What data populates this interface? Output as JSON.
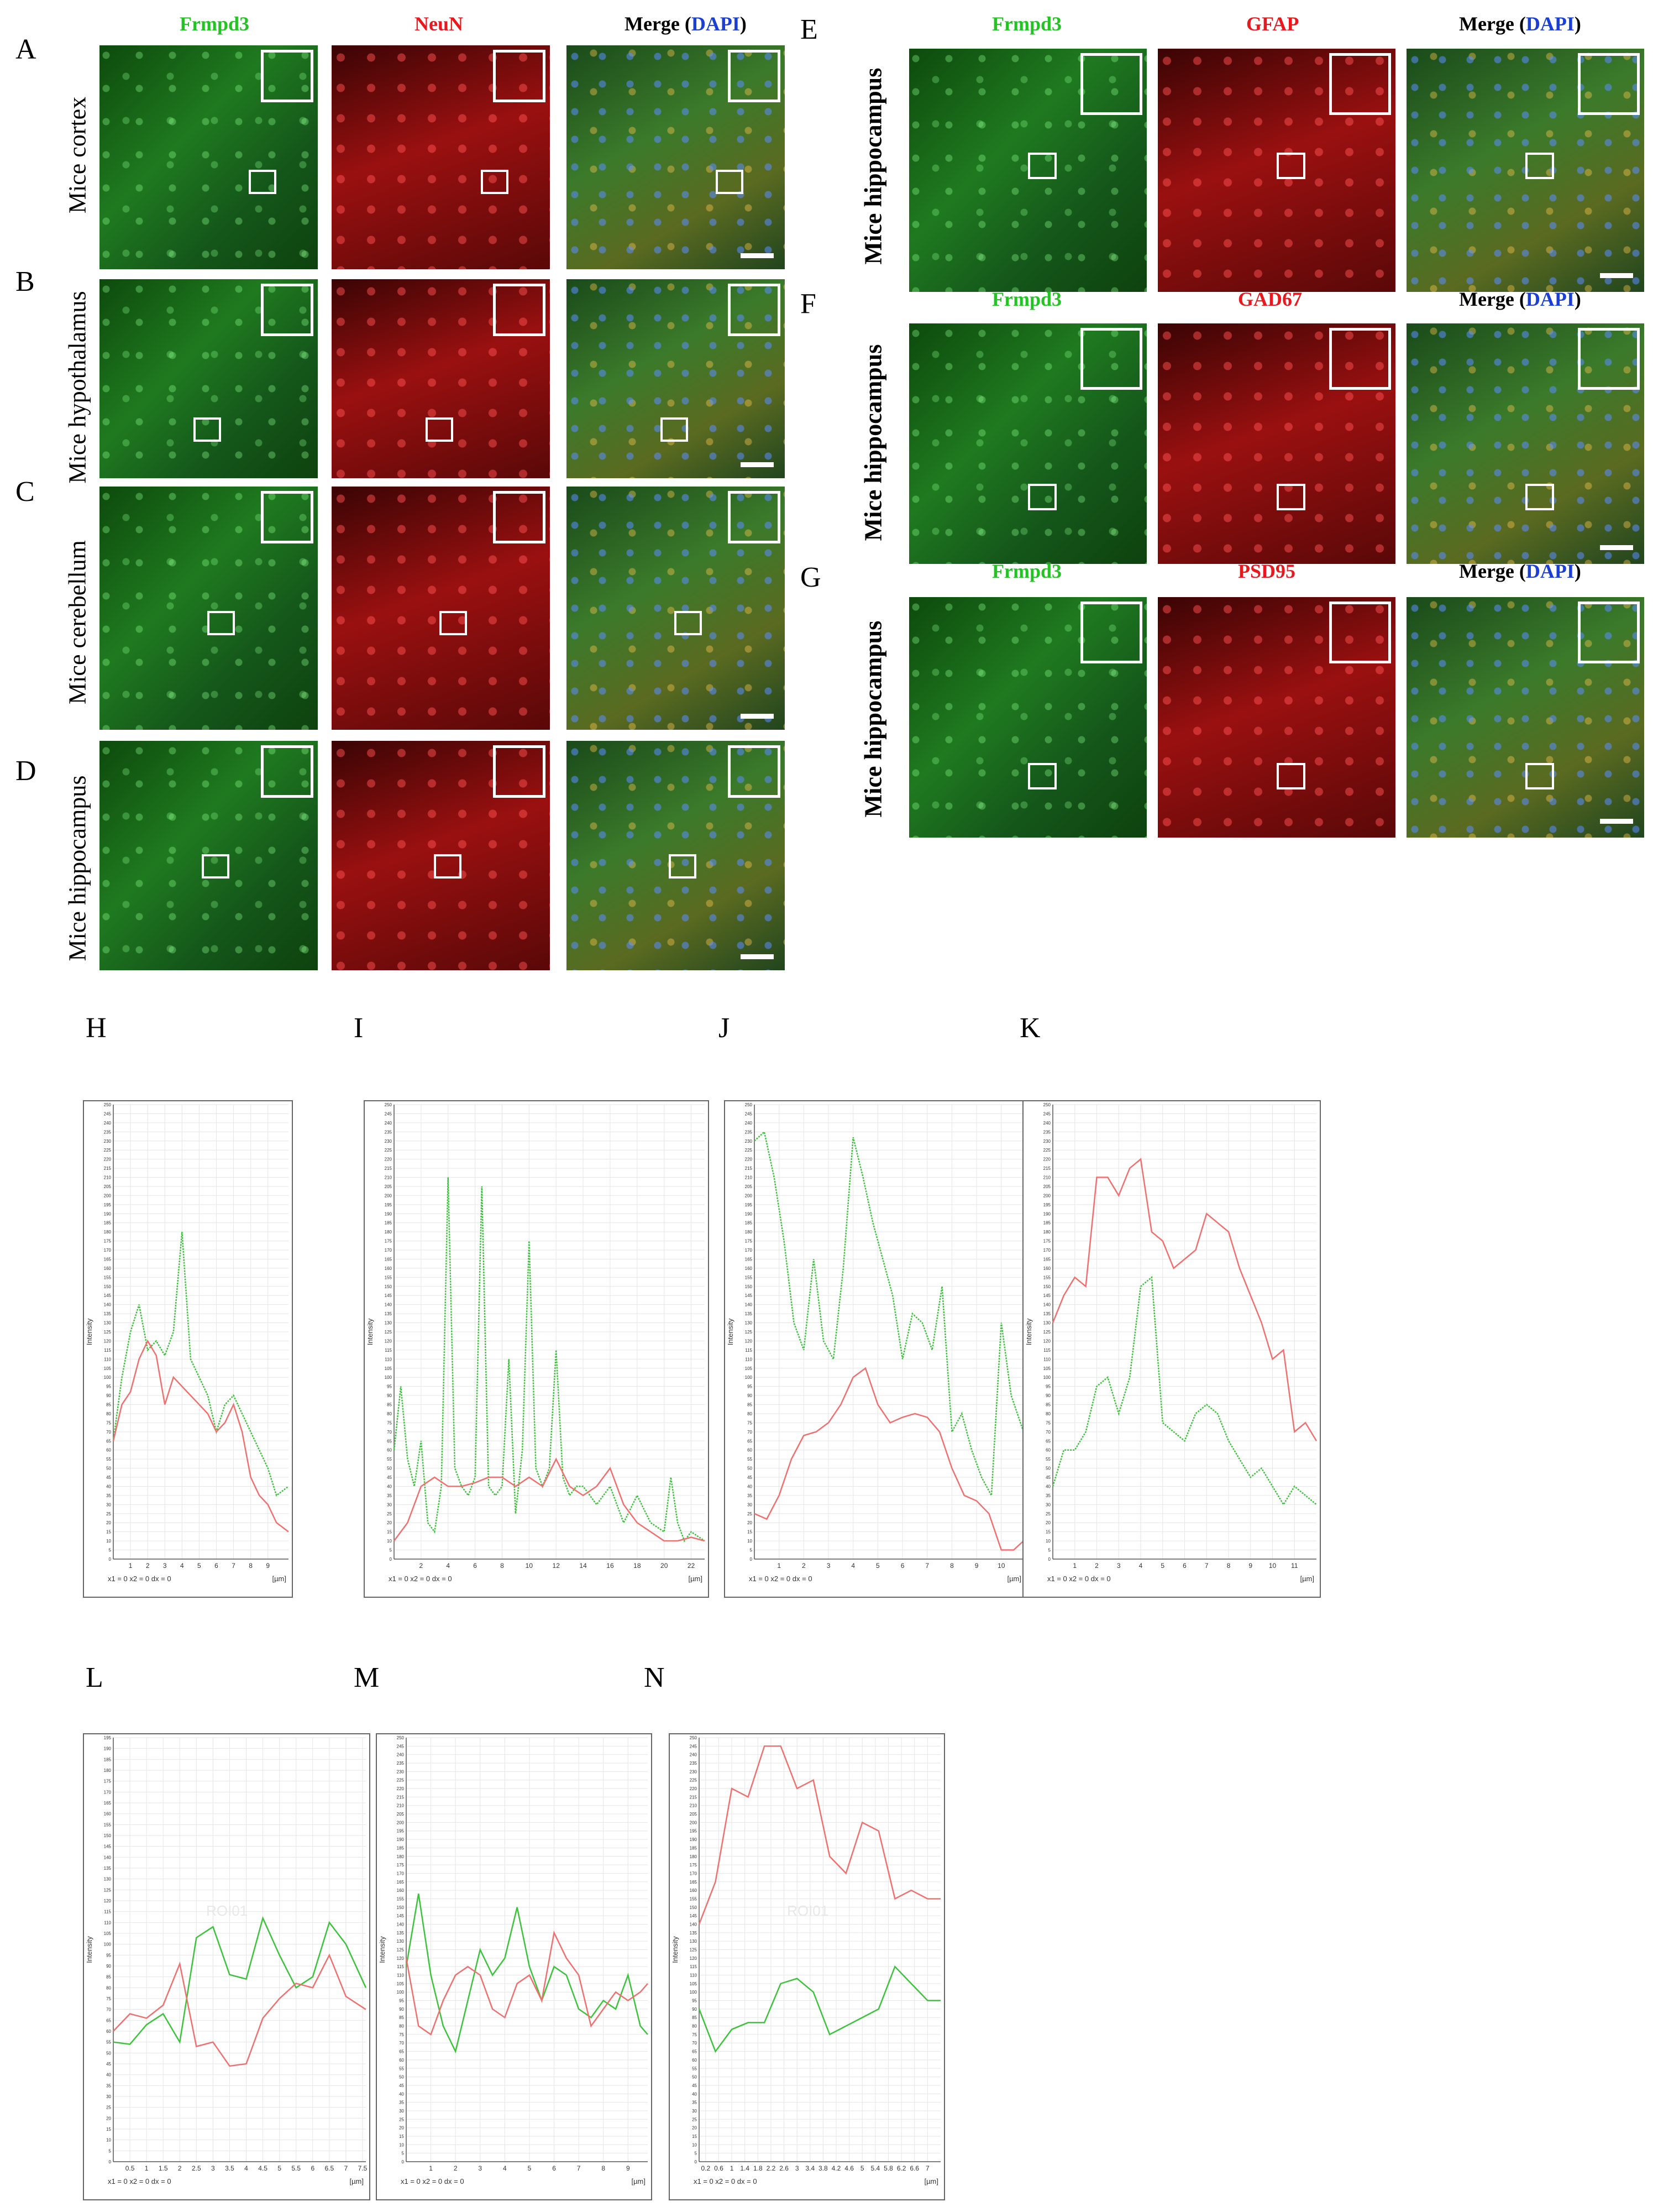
{
  "figure": {
    "panel_letters": [
      "A",
      "B",
      "C",
      "D",
      "E",
      "F",
      "G",
      "H",
      "I",
      "J",
      "K",
      "L",
      "M",
      "N"
    ],
    "row_labels_left": [
      "Mice cortex",
      "Mice hypothalamus",
      "Mice cerebellum",
      "Mice hippocampus"
    ],
    "row_labels_right": [
      "Mice hippocampus",
      "Mice hippocampus",
      "Mice hippocampus"
    ],
    "left_columns": {
      "c1": "Frmpd3",
      "c2": "NeuN",
      "c3_prefix": "Merge (",
      "c3_dapi": "DAPI",
      "c3_suffix": ")"
    },
    "E_columns": {
      "c1": "Frmpd3",
      "c2": "GFAP",
      "c3_prefix": "Merge (",
      "c3_dapi": "DAPI",
      "c3_suffix": ")"
    },
    "F_columns": {
      "c1": "Frmpd3",
      "c2": "GAD67",
      "c3_prefix": "Merge (",
      "c3_dapi": "DAPI",
      "c3_suffix": ")"
    },
    "G_columns": {
      "c1": "Frmpd3",
      "c2": "PSD95",
      "c3_prefix": "Merge (",
      "c3_dapi": "DAPI",
      "c3_suffix": ")"
    },
    "colors": {
      "green": "#22c322",
      "red": "#e8191e",
      "blue": "#1a3fd6",
      "green_line": "#3cc33c",
      "red_line": "#f07070"
    }
  },
  "chart_data": [
    {
      "id": "H",
      "type": "line",
      "ylabel": "Intensity",
      "xlabel": "[µm]",
      "footer": "x1 = 0   x2 = 0   dx = 0",
      "ylim": [
        0,
        250
      ],
      "xlim": [
        0,
        10.2
      ],
      "ytick_step": 5,
      "xticks": [
        1,
        2,
        3,
        4,
        5,
        6,
        7,
        8,
        9
      ],
      "watermark": "",
      "series": [
        {
          "name": "green",
          "color": "#3cc33c",
          "dashed": true,
          "x": [
            0,
            0.5,
            1,
            1.5,
            2,
            2.5,
            3,
            3.5,
            4,
            4.5,
            5,
            5.5,
            6,
            6.5,
            7,
            7.5,
            8,
            8.5,
            9,
            9.5,
            10.2
          ],
          "y": [
            65,
            100,
            125,
            140,
            115,
            120,
            112,
            125,
            180,
            110,
            100,
            90,
            70,
            85,
            90,
            80,
            70,
            60,
            50,
            35,
            40
          ]
        },
        {
          "name": "red",
          "color": "#f07070",
          "dashed": false,
          "x": [
            0,
            0.5,
            1,
            1.5,
            2,
            2.5,
            3,
            3.5,
            4,
            4.5,
            5,
            5.5,
            6,
            6.5,
            7,
            7.5,
            8,
            8.5,
            9,
            9.5,
            10.2
          ],
          "y": [
            65,
            85,
            92,
            110,
            120,
            112,
            85,
            100,
            95,
            90,
            85,
            80,
            70,
            75,
            85,
            70,
            45,
            35,
            30,
            20,
            15
          ]
        }
      ]
    },
    {
      "id": "I",
      "type": "line",
      "ylabel": "Intensity",
      "xlabel": "[µm]",
      "footer": "x1 = 0   x2 = 0   dx = 0",
      "ylim": [
        0,
        250
      ],
      "xlim": [
        0,
        23
      ],
      "ytick_step": 5,
      "xticks": [
        2,
        4,
        6,
        8,
        10,
        12,
        14,
        16,
        18,
        20,
        22
      ],
      "watermark": "",
      "series": [
        {
          "name": "green",
          "color": "#3cc33c",
          "dashed": true,
          "x": [
            0,
            0.5,
            1,
            1.5,
            2,
            2.5,
            3,
            3.5,
            4,
            4.5,
            5,
            5.5,
            6,
            6.5,
            7,
            7.5,
            8,
            8.5,
            9,
            9.5,
            10,
            10.5,
            11,
            11.5,
            12,
            12.5,
            13,
            13.5,
            14,
            15,
            16,
            17,
            18,
            19,
            20,
            20.5,
            21,
            21.5,
            22,
            23
          ],
          "y": [
            60,
            95,
            55,
            40,
            65,
            20,
            15,
            40,
            210,
            50,
            40,
            35,
            45,
            205,
            40,
            35,
            40,
            110,
            25,
            60,
            175,
            50,
            40,
            50,
            115,
            45,
            35,
            40,
            40,
            30,
            40,
            20,
            35,
            20,
            15,
            45,
            20,
            10,
            15,
            10
          ]
        },
        {
          "name": "red",
          "color": "#f07070",
          "dashed": false,
          "x": [
            0,
            1,
            2,
            3,
            4,
            5,
            6,
            7,
            8,
            9,
            10,
            11,
            12,
            13,
            14,
            15,
            16,
            17,
            18,
            19,
            20,
            21,
            22,
            23
          ],
          "y": [
            10,
            20,
            40,
            45,
            40,
            40,
            42,
            45,
            45,
            40,
            45,
            40,
            55,
            40,
            35,
            40,
            50,
            30,
            20,
            15,
            10,
            10,
            12,
            10
          ]
        }
      ]
    },
    {
      "id": "J",
      "type": "line",
      "ylabel": "Intensity",
      "xlabel": "[µm]",
      "footer": "x1 = 0   x2 = 0   dx = 0",
      "ylim": [
        0,
        250
      ],
      "xlim": [
        0,
        10.9
      ],
      "ytick_step": 5,
      "xticks": [
        1,
        2,
        3,
        4,
        5,
        6,
        7,
        8,
        9,
        10
      ],
      "watermark": "",
      "series": [
        {
          "name": "green",
          "color": "#3cc33c",
          "dashed": true,
          "x": [
            0,
            0.4,
            0.8,
            1.2,
            1.6,
            2,
            2.4,
            2.8,
            3.2,
            3.6,
            4,
            4.4,
            4.8,
            5.2,
            5.6,
            6,
            6.4,
            6.8,
            7.2,
            7.6,
            8,
            8.4,
            8.8,
            9.2,
            9.6,
            10,
            10.4,
            10.9
          ],
          "y": [
            230,
            235,
            210,
            175,
            130,
            115,
            165,
            120,
            110,
            160,
            232,
            210,
            185,
            165,
            145,
            110,
            135,
            130,
            115,
            150,
            70,
            80,
            60,
            45,
            35,
            130,
            90,
            70
          ]
        },
        {
          "name": "red",
          "color": "#f07070",
          "dashed": false,
          "x": [
            0,
            0.5,
            1,
            1.5,
            2,
            2.5,
            3,
            3.5,
            4,
            4.5,
            5,
            5.5,
            6,
            6.5,
            7,
            7.5,
            8,
            8.5,
            9,
            9.5,
            10,
            10.5,
            10.9
          ],
          "y": [
            25,
            22,
            35,
            55,
            68,
            70,
            75,
            85,
            100,
            105,
            85,
            75,
            78,
            80,
            78,
            70,
            50,
            35,
            32,
            25,
            5,
            5,
            10
          ]
        }
      ]
    },
    {
      "id": "K",
      "type": "line",
      "ylabel": "Intensity",
      "xlabel": "[µm]",
      "footer": "x1 = 0   x2 = 0   dx = 0",
      "ylim": [
        0,
        250
      ],
      "xlim": [
        0,
        12
      ],
      "ytick_step": 5,
      "xticks": [
        1,
        2,
        3,
        4,
        5,
        6,
        7,
        8,
        9,
        10,
        11
      ],
      "watermark": "",
      "series": [
        {
          "name": "green",
          "color": "#3cc33c",
          "dashed": true,
          "x": [
            0,
            0.5,
            1,
            1.5,
            2,
            2.5,
            3,
            3.5,
            4,
            4.5,
            5,
            5.5,
            6,
            6.5,
            7,
            7.5,
            8,
            8.5,
            9,
            9.5,
            10,
            10.5,
            11,
            11.5,
            12
          ],
          "y": [
            40,
            60,
            60,
            70,
            95,
            100,
            80,
            100,
            150,
            155,
            75,
            70,
            65,
            80,
            85,
            80,
            65,
            55,
            45,
            50,
            40,
            30,
            40,
            35,
            30
          ]
        },
        {
          "name": "red",
          "color": "#f07070",
          "dashed": false,
          "x": [
            0,
            0.5,
            1,
            1.5,
            2,
            2.5,
            3,
            3.5,
            4,
            4.5,
            5,
            5.5,
            6,
            6.5,
            7,
            7.5,
            8,
            8.5,
            9,
            9.5,
            10,
            10.5,
            11,
            11.5,
            12
          ],
          "y": [
            130,
            145,
            155,
            150,
            210,
            210,
            200,
            215,
            220,
            180,
            175,
            160,
            165,
            170,
            190,
            185,
            180,
            160,
            145,
            130,
            110,
            115,
            70,
            75,
            65
          ]
        }
      ]
    },
    {
      "id": "L",
      "type": "line",
      "ylabel": "Intensity",
      "xlabel": "[µm]",
      "footer": "x1 = 0   x2 = 0   dx = 0",
      "ylim": [
        0,
        195
      ],
      "xlim": [
        0,
        7.6
      ],
      "ytick_step": 5,
      "xticks": [
        0.5,
        1,
        1.5,
        2,
        2.5,
        3,
        3.5,
        4,
        4.5,
        5,
        5.5,
        6,
        6.5,
        7,
        7.5
      ],
      "watermark": "ROI01",
      "series": [
        {
          "name": "green",
          "color": "#3cc33c",
          "dashed": false,
          "x": [
            0,
            0.5,
            1,
            1.5,
            2,
            2.5,
            3,
            3.5,
            4,
            4.5,
            5,
            5.5,
            6,
            6.5,
            7,
            7.6
          ],
          "y": [
            55,
            54,
            63,
            68,
            55,
            103,
            108,
            86,
            84,
            112,
            95,
            80,
            85,
            110,
            100,
            80
          ]
        },
        {
          "name": "red",
          "color": "#f07070",
          "dashed": false,
          "x": [
            0,
            0.5,
            1,
            1.5,
            2,
            2.5,
            3,
            3.5,
            4,
            4.5,
            5,
            5.5,
            6,
            6.5,
            7,
            7.6
          ],
          "y": [
            60,
            68,
            66,
            72,
            91,
            53,
            55,
            44,
            45,
            66,
            75,
            82,
            80,
            95,
            76,
            70
          ]
        }
      ]
    },
    {
      "id": "M",
      "type": "line",
      "ylabel": "Intensity",
      "xlabel": "[µm]",
      "footer": "x1 = 0   x2 = 0   dx = 0",
      "ylim": [
        0,
        250
      ],
      "xlim": [
        0,
        9.8
      ],
      "ytick_step": 5,
      "xticks": [
        1,
        2,
        3,
        4,
        5,
        6,
        7,
        8,
        9
      ],
      "watermark": "",
      "series": [
        {
          "name": "green",
          "color": "#3cc33c",
          "dashed": false,
          "x": [
            0,
            0.5,
            1,
            1.5,
            2,
            2.5,
            3,
            3.5,
            4,
            4.5,
            5,
            5.5,
            6,
            6.5,
            7,
            7.5,
            8,
            8.5,
            9,
            9.5,
            9.8
          ],
          "y": [
            115,
            158,
            110,
            80,
            65,
            95,
            125,
            110,
            120,
            150,
            115,
            95,
            115,
            110,
            90,
            85,
            95,
            90,
            110,
            80,
            75
          ]
        },
        {
          "name": "red",
          "color": "#f07070",
          "dashed": false,
          "x": [
            0,
            0.5,
            1,
            1.5,
            2,
            2.5,
            3,
            3.5,
            4,
            4.5,
            5,
            5.5,
            6,
            6.5,
            7,
            7.5,
            8,
            8.5,
            9,
            9.5,
            9.8
          ],
          "y": [
            120,
            80,
            75,
            95,
            110,
            115,
            110,
            90,
            85,
            105,
            110,
            95,
            135,
            120,
            110,
            80,
            90,
            100,
            95,
            100,
            105
          ]
        }
      ]
    },
    {
      "id": "N",
      "type": "line",
      "ylabel": "Intensity",
      "xlabel": "[µm]",
      "footer": "x1 = 0   x2 = 0   dx = 0",
      "ylim": [
        0,
        250
      ],
      "xlim": [
        0,
        7.4
      ],
      "ytick_step": 5,
      "xticks": [
        0.2,
        0.6,
        1,
        1.4,
        1.8,
        2.2,
        2.6,
        3,
        3.4,
        3.8,
        4.2,
        4.6,
        5,
        5.4,
        5.8,
        6.2,
        6.6,
        7
      ],
      "watermark": "ROI01",
      "series": [
        {
          "name": "green",
          "color": "#3cc33c",
          "dashed": false,
          "x": [
            0,
            0.5,
            1,
            1.5,
            2,
            2.5,
            3,
            3.5,
            4,
            4.5,
            5,
            5.5,
            6,
            6.5,
            7,
            7.4
          ],
          "y": [
            90,
            65,
            78,
            82,
            82,
            105,
            108,
            100,
            75,
            80,
            85,
            90,
            115,
            105,
            95,
            95
          ]
        },
        {
          "name": "red",
          "color": "#f07070",
          "dashed": false,
          "x": [
            0,
            0.5,
            1,
            1.5,
            2,
            2.5,
            3,
            3.5,
            4,
            4.5,
            5,
            5.5,
            6,
            6.5,
            7,
            7.4
          ],
          "y": [
            140,
            165,
            220,
            215,
            245,
            245,
            220,
            225,
            180,
            170,
            200,
            195,
            155,
            160,
            155,
            155
          ]
        }
      ]
    }
  ]
}
